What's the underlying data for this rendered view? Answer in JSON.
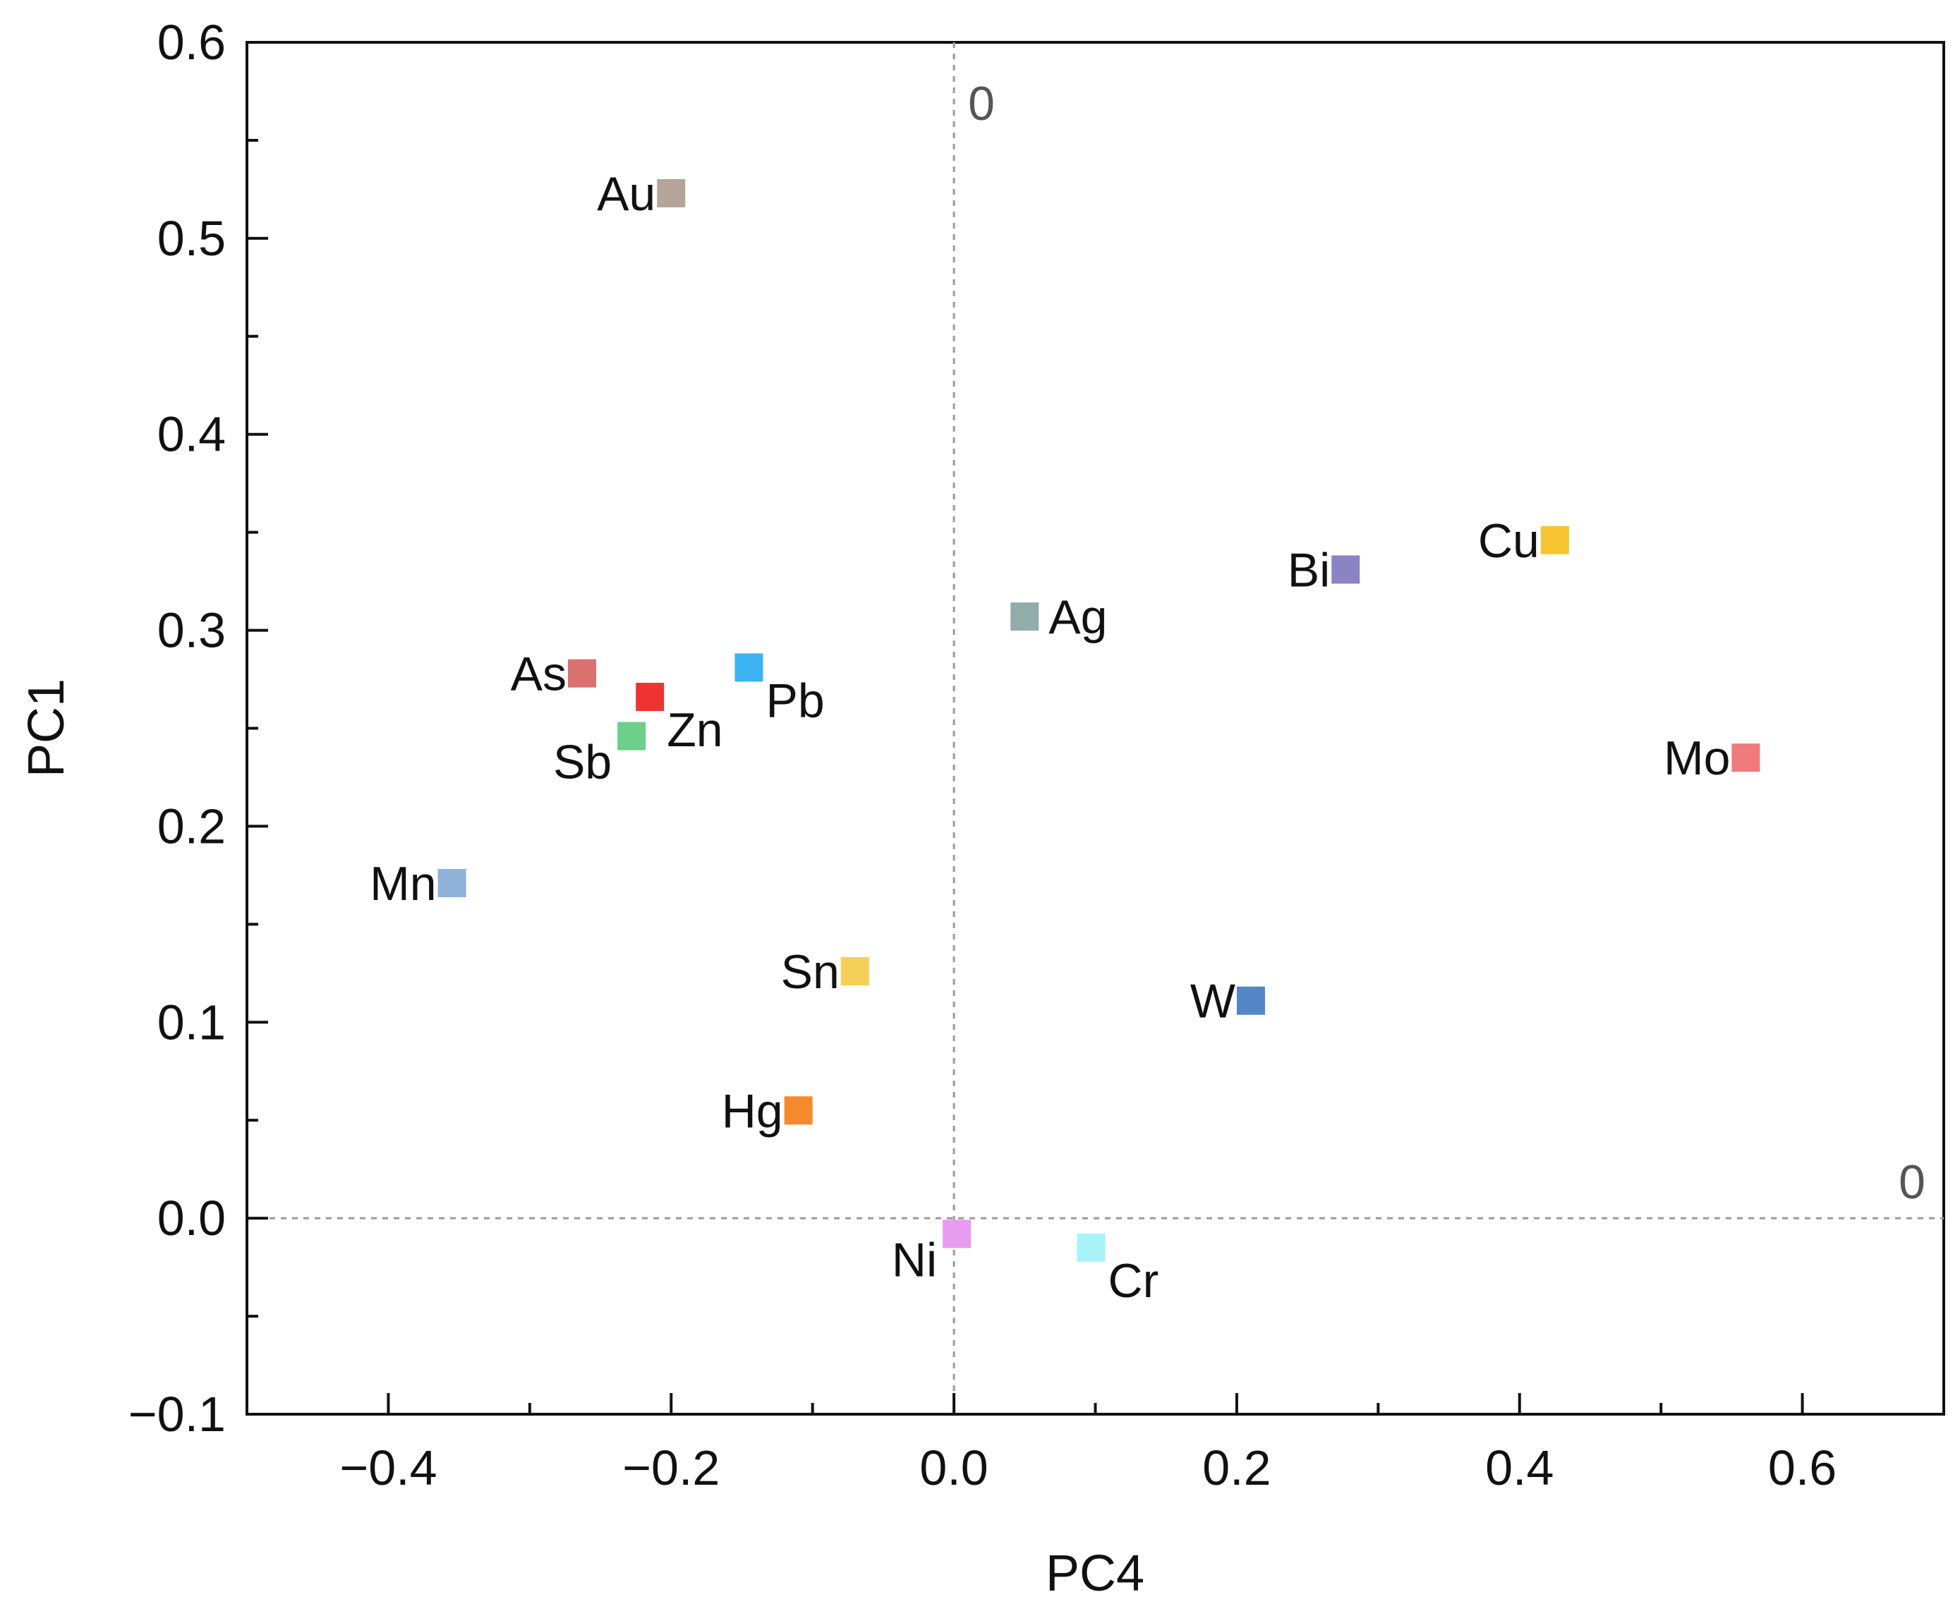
{
  "chart_data": {
    "type": "scatter",
    "xlabel": "PC4",
    "ylabel": "PC1",
    "xlim": [
      -0.5,
      0.7
    ],
    "ylim": [
      -0.1,
      0.6
    ],
    "x_ticks": [
      {
        "value": -0.4,
        "label": "−0.4"
      },
      {
        "value": -0.2,
        "label": "−0.2"
      },
      {
        "value": 0.0,
        "label": "0.0"
      },
      {
        "value": 0.2,
        "label": "0.2"
      },
      {
        "value": 0.4,
        "label": "0.4"
      },
      {
        "value": 0.6,
        "label": "0.6"
      }
    ],
    "y_ticks": [
      {
        "value": -0.1,
        "label": "−0.1"
      },
      {
        "value": 0.0,
        "label": "0.0"
      },
      {
        "value": 0.1,
        "label": "0.1"
      },
      {
        "value": 0.2,
        "label": "0.2"
      },
      {
        "value": 0.3,
        "label": "0.3"
      },
      {
        "value": 0.4,
        "label": "0.4"
      },
      {
        "value": 0.5,
        "label": "0.5"
      },
      {
        "value": 0.6,
        "label": "0.6"
      }
    ],
    "reference_lines": {
      "vertical_x": 0.0,
      "vertical_label": "0",
      "horizontal_y": 0.0,
      "horizontal_label": "0"
    },
    "points": [
      {
        "label": "Au",
        "x": -0.2,
        "y": 0.523,
        "color": "#b5a49a",
        "label_side": "left"
      },
      {
        "label": "As",
        "x": -0.263,
        "y": 0.278,
        "color": "#d9716e",
        "label_side": "left"
      },
      {
        "label": "Zn",
        "x": -0.215,
        "y": 0.266,
        "color": "#ee3333",
        "label_side": "below-right"
      },
      {
        "label": "Pb",
        "x": -0.145,
        "y": 0.281,
        "color": "#3bb3f3",
        "label_side": "below-right"
      },
      {
        "label": "Sb",
        "x": -0.228,
        "y": 0.246,
        "color": "#6ccf8a",
        "label_side": "below-left"
      },
      {
        "label": "Mn",
        "x": -0.355,
        "y": 0.171,
        "color": "#8fb2da",
        "label_side": "left"
      },
      {
        "label": "Sn",
        "x": -0.07,
        "y": 0.126,
        "color": "#f5cf59",
        "label_side": "left"
      },
      {
        "label": "Hg",
        "x": -0.11,
        "y": 0.055,
        "color": "#f58a2c",
        "label_side": "left"
      },
      {
        "label": "Ni",
        "x": 0.002,
        "y": -0.008,
        "color": "#e79cf0",
        "label_side": "below-left"
      },
      {
        "label": "Cr",
        "x": 0.097,
        "y": -0.015,
        "color": "#a6f3f8",
        "label_side": "below-right"
      },
      {
        "label": "Ag",
        "x": 0.05,
        "y": 0.307,
        "color": "#92acab",
        "label_side": "right"
      },
      {
        "label": "Bi",
        "x": 0.277,
        "y": 0.331,
        "color": "#8b83c4",
        "label_side": "left"
      },
      {
        "label": "Cu",
        "x": 0.425,
        "y": 0.346,
        "color": "#f7c531",
        "label_side": "left"
      },
      {
        "label": "Mo",
        "x": 0.56,
        "y": 0.235,
        "color": "#f07a7d",
        "label_side": "left"
      },
      {
        "label": "W",
        "x": 0.21,
        "y": 0.111,
        "color": "#5386c6",
        "label_side": "left"
      }
    ]
  }
}
